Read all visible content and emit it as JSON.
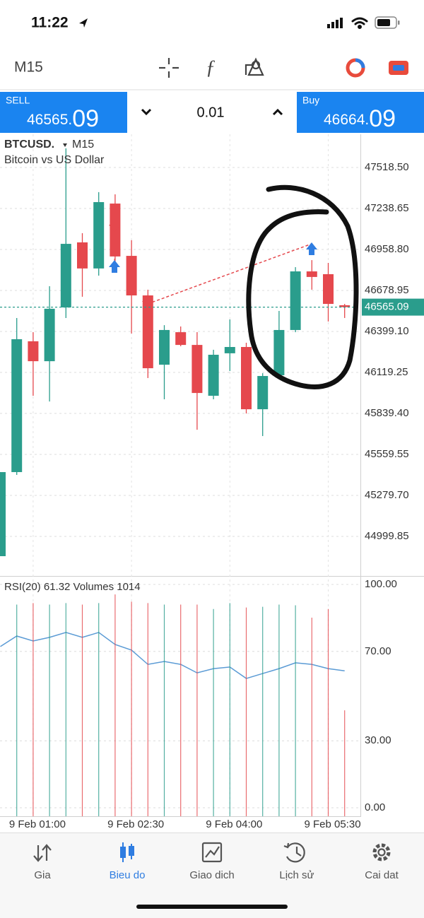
{
  "status_bar": {
    "time": "11:22"
  },
  "toolbar": {
    "timeframe": "M15"
  },
  "trade_panel": {
    "sell": {
      "label": "SELL",
      "price_small": "46565.",
      "price_large": "09"
    },
    "volume": "0.01",
    "buy": {
      "label": "Buy",
      "price_small": "46664.",
      "price_large": "09"
    }
  },
  "chart_data": [
    {
      "type": "candlestick",
      "title": "BTCUSD.",
      "timeframe": "M15",
      "subtitle": "Bitcoin vs US Dollar",
      "open": [
        44865,
        45439,
        46332,
        46196,
        46563,
        47007,
        46829,
        47272,
        46915,
        46645,
        46172,
        46394,
        46307,
        45960,
        46250,
        46293,
        45868,
        46100,
        46409,
        46809,
        46790,
        46578
      ],
      "high": [
        45439,
        46491,
        46394,
        46708,
        47649,
        47070,
        47350,
        47335,
        47022,
        46684,
        46442,
        46433,
        46394,
        46274,
        46481,
        46322,
        46114,
        46539,
        46838,
        46886,
        46867,
        46587
      ],
      "low": [
        44865,
        45420,
        45960,
        45921,
        46491,
        46636,
        46780,
        46853,
        46385,
        46081,
        45936,
        46298,
        45728,
        45936,
        46129,
        45839,
        45685,
        46095,
        46394,
        46684,
        46467,
        46491
      ],
      "close": [
        45439,
        46346,
        46196,
        46554,
        46997,
        46829,
        47282,
        46911,
        46645,
        46148,
        46409,
        46307,
        45979,
        46240,
        46293,
        45868,
        46095,
        46409,
        46809,
        46771,
        46587,
        46565.09
      ],
      "up_color": "#2a9d8c",
      "down_color": "#e5484d",
      "current_price": 46565.09,
      "ylim": [
        44730,
        47745
      ],
      "yticks": [
        {
          "value": 47518.5,
          "label": "47518.50"
        },
        47238.65,
        {
          "value": 46958.8,
          "label": "46958.80"
        },
        46678.95,
        {
          "value": 46399.1,
          "label": "46399.10"
        },
        46119.25,
        {
          "value": 45839.4,
          "label": "45839.40"
        },
        45559.55,
        {
          "value": 45279.7,
          "label": "45279.70"
        },
        44999.85
      ],
      "grid": true
    },
    {
      "type": "rsi_volume",
      "title": "RSI(20) 61.32 Volumes 1014",
      "categories": [
        null,
        null,
        "9 Feb 01:00",
        null,
        null,
        null,
        null,
        null,
        "9 Feb 02:30",
        null,
        null,
        null,
        null,
        null,
        "9 Feb 04:00",
        null,
        null,
        null,
        null,
        null,
        "9 Feb 05:30",
        null
      ],
      "series": [
        {
          "color": "#5b9bd5",
          "values": [
            72.2,
            76.9,
            74.7,
            76.3,
            78.5,
            76.3,
            78.5,
            73.1,
            70.6,
            64.2,
            65.5,
            64.2,
            60.4,
            62.3,
            63.0,
            57.9,
            60.1,
            62.3,
            64.9,
            64.2,
            62.3,
            61.32
          ]
        },
        {
          "axis": "y2",
          "values": [
            null,
            2026,
            2040,
            2026,
            2040,
            2026,
            2040,
            2123,
            2054,
            2040,
            2026,
            2026,
            2026,
            1984,
            2040,
            1998,
            2005,
            2026,
            2019,
            1901,
            1984,
            1014
          ]
        }
      ],
      "ylim": [
        -3.8,
        103.8
      ],
      "yticks": [
        {
          "value": 100,
          "label": "100.00"
        },
        {
          "value": 70,
          "label": "70.00"
        },
        {
          "value": 30,
          "label": "30.00"
        },
        {
          "value": 0,
          "label": "0.00"
        }
      ],
      "y2lim": [
        0,
        2300
      ],
      "grid": true
    }
  ],
  "tab_bar": {
    "tabs": [
      "Gia",
      "Bieu do",
      "Giao dich",
      "Lịch sử",
      "Cai dat"
    ],
    "active": 1
  }
}
